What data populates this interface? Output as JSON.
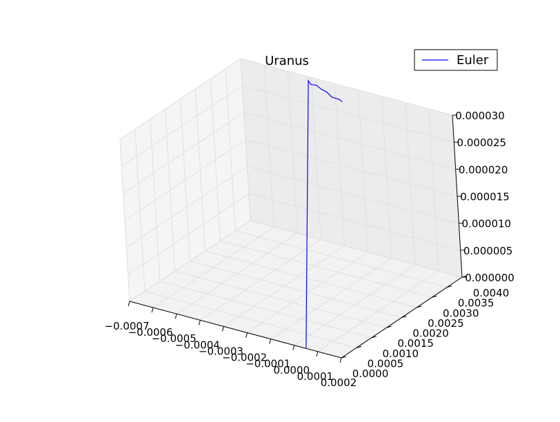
{
  "chart_data": {
    "type": "line",
    "projection": "3d",
    "title": "Uranus",
    "legend": {
      "placement": "top-right",
      "entries": [
        "Euler"
      ]
    },
    "grid": true,
    "x_axis": {
      "range": [
        -0.0007,
        0.0002
      ],
      "ticks": [
        "−0.0007",
        "−0.0006",
        "−0.0005",
        "−0.0004",
        "−0.0003",
        "−0.0002",
        "−0.0001",
        "0.0000",
        "0.0001",
        "0.0002"
      ]
    },
    "y_axis": {
      "range": [
        0.0,
        0.004
      ],
      "ticks": [
        "0.0000",
        "0.0005",
        "0.0010",
        "0.0015",
        "0.0020",
        "0.0025",
        "0.0030",
        "0.0035",
        "0.0040"
      ]
    },
    "z_axis": {
      "range": [
        0.0,
        3e-05
      ],
      "ticks": [
        "0.000000",
        "0.000005",
        "0.000010",
        "0.000015",
        "0.000020",
        "0.000025",
        "0.000030"
      ]
    },
    "series": [
      {
        "name": "Euler",
        "color": "#0000ff",
        "note_units": "data units (x, y, z)",
        "points": [
          [
            5e-05,
            0.0,
            0.0
          ],
          [
            -0.0004,
            0.0039,
            2.98e-05
          ],
          [
            -0.00039,
            0.0039,
            2.92e-05
          ],
          [
            -0.00038,
            0.004,
            2.88e-05
          ],
          [
            -0.00036,
            0.004,
            2.83e-05
          ],
          [
            -0.00035,
            0.0041,
            2.75e-05
          ],
          [
            -0.00033,
            0.0041,
            2.68e-05
          ],
          [
            -0.00031,
            0.0042,
            2.62e-05
          ],
          [
            -0.0003,
            0.0042,
            2.59e-05
          ]
        ]
      }
    ]
  }
}
